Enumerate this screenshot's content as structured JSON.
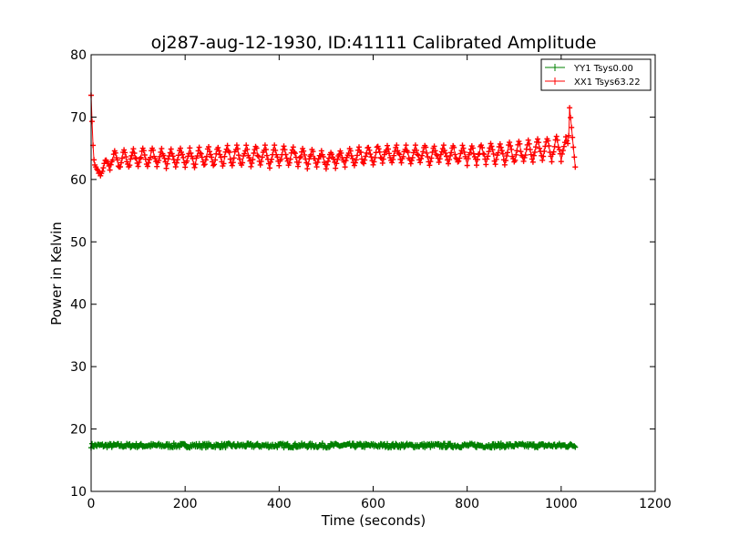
{
  "chart_data": {
    "type": "line",
    "title": "oj287-aug-12-1930, ID:41111 Calibrated Amplitude",
    "xlabel": "Time (seconds)",
    "ylabel": "Power in Kelvin",
    "xlim": [
      0,
      1200
    ],
    "ylim": [
      10,
      80
    ],
    "xticks": [
      0,
      200,
      400,
      600,
      800,
      1000,
      1200
    ],
    "yticks": [
      10,
      20,
      30,
      40,
      50,
      60,
      70,
      80
    ],
    "grid": false,
    "legend_position": "top-right",
    "series": [
      {
        "name": "YY1 Tsys0.00",
        "color": "#008000",
        "marker": "+",
        "x_start": 0,
        "x_end": 1030,
        "x_step": 2,
        "mean": 17.4,
        "band": [
          17.0,
          17.7
        ]
      },
      {
        "name": "XX1 Tsys63.22",
        "color": "#ff0000",
        "marker": "+",
        "x_start": 0,
        "x_end": 1030,
        "x_step": 2,
        "x": [
          0,
          5,
          10,
          20,
          40,
          100,
          200,
          300,
          400,
          500,
          600,
          700,
          800,
          900,
          1000,
          1015,
          1018,
          1030
        ],
        "upper": [
          73.5,
          64,
          62,
          62,
          64.5,
          65,
          65,
          65.5,
          65.5,
          64.5,
          65.5,
          65.5,
          65.5,
          66,
          67,
          67,
          71.5,
          62
        ],
        "lower": [
          73.5,
          63,
          60.5,
          60.5,
          61,
          61.5,
          61.5,
          61.5,
          61.5,
          61.5,
          62,
          62,
          62,
          62,
          62.5,
          62.5,
          71.5,
          62
        ]
      }
    ]
  }
}
